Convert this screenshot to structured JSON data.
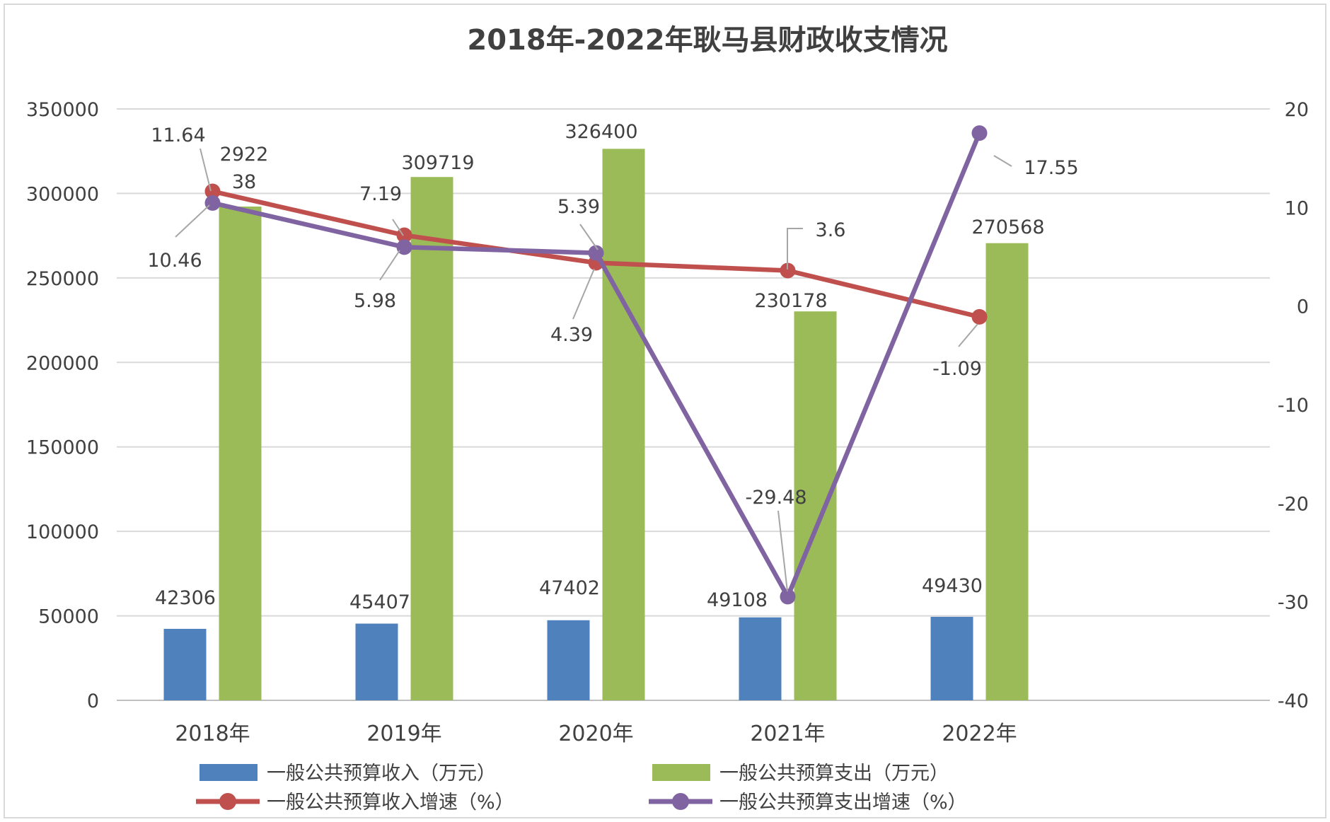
{
  "chart_data": {
    "type": "bar+line",
    "title": "2018年-2022年耿马县财政收支情况",
    "categories": [
      "2018年",
      "2019年",
      "2020年",
      "2021年",
      "2022年"
    ],
    "y_left": {
      "min": 0,
      "max": 350000,
      "step": 50000,
      "ticks": [
        "0",
        "50000",
        "100000",
        "150000",
        "200000",
        "250000",
        "300000",
        "350000"
      ]
    },
    "y_right": {
      "min": -40,
      "max": 20,
      "step": 10,
      "ticks": [
        "-40",
        "-30",
        "-20",
        "-10",
        "0",
        "10",
        "20"
      ]
    },
    "grid": true,
    "legend_position": "bottom",
    "bar_series": [
      {
        "name": "一般公共预算收入（万元）",
        "color": "#4F81BD",
        "values": [
          42306,
          45407,
          47402,
          49108,
          49430
        ],
        "labels": [
          "42306",
          "45407",
          "47402",
          "49108",
          "49430"
        ]
      },
      {
        "name": "一般公共预算支出（万元）",
        "color": "#9BBB59",
        "values": [
          292238,
          309719,
          326400,
          230178,
          270568
        ],
        "labels": [
          "2922\n38",
          "309719",
          "326400",
          "230178",
          "270568"
        ]
      }
    ],
    "line_series": [
      {
        "name": "一般公共预算收入增速（%）",
        "color": "#C0504D",
        "values": [
          11.64,
          7.19,
          4.39,
          3.6,
          -1.09
        ],
        "labels": [
          "11.64",
          "7.19",
          "4.39",
          "3.6",
          "-1.09"
        ]
      },
      {
        "name": "一般公共预算支出增速（%）",
        "color": "#8064A2",
        "values": [
          10.46,
          5.98,
          5.39,
          -29.48,
          17.55
        ],
        "labels": [
          "10.46",
          "5.98",
          "5.39",
          "-29.48",
          "17.55"
        ]
      }
    ]
  }
}
